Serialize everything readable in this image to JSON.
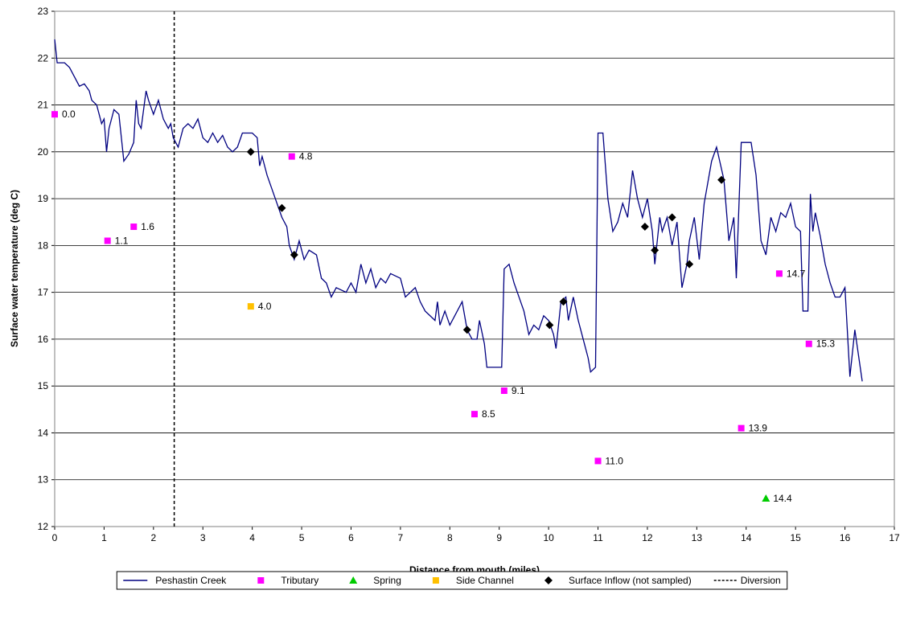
{
  "chart_data": {
    "type": "line",
    "xlabel": "Distance from mouth (miles)",
    "ylabel": "Surface water temperature (deg C)",
    "xlim": [
      0,
      17
    ],
    "xticks": [
      0,
      1,
      2,
      3,
      4,
      5,
      6,
      7,
      8,
      9,
      10,
      11,
      12,
      13,
      14,
      15,
      16,
      17
    ],
    "ylim": [
      12,
      23
    ],
    "yticks": [
      12,
      13,
      14,
      15,
      16,
      17,
      18,
      19,
      20,
      21,
      22,
      23
    ],
    "grid": true,
    "legend": "bottom",
    "series": [
      {
        "name": "Peshastin Creek",
        "color": "#000080",
        "marker": "line",
        "x": [
          0,
          0.05,
          0.2,
          0.3,
          0.4,
          0.5,
          0.6,
          0.7,
          0.75,
          0.85,
          0.9,
          0.95,
          1.0,
          1.05,
          1.1,
          1.2,
          1.3,
          1.35,
          1.4,
          1.5,
          1.6,
          1.65,
          1.7,
          1.75,
          1.8,
          1.85,
          1.9,
          2.0,
          2.1,
          2.2,
          2.3,
          2.35,
          2.4,
          2.45,
          2.5,
          2.6,
          2.7,
          2.8,
          2.9,
          3.0,
          3.1,
          3.2,
          3.3,
          3.4,
          3.5,
          3.6,
          3.7,
          3.8,
          4.0,
          4.1,
          4.15,
          4.2,
          4.3,
          4.4,
          4.5,
          4.6,
          4.7,
          4.75,
          4.85,
          4.95,
          5.05,
          5.15,
          5.3,
          5.4,
          5.5,
          5.6,
          5.7,
          5.9,
          6.0,
          6.1,
          6.2,
          6.3,
          6.4,
          6.5,
          6.6,
          6.7,
          6.8,
          7.0,
          7.1,
          7.2,
          7.3,
          7.4,
          7.5,
          7.6,
          7.7,
          7.75,
          7.8,
          7.9,
          8.0,
          8.1,
          8.25,
          8.35,
          8.45,
          8.55,
          8.6,
          8.7,
          8.75,
          8.9,
          9.05,
          9.1,
          9.2,
          9.3,
          9.4,
          9.5,
          9.6,
          9.7,
          9.8,
          9.9,
          10.0,
          10.1,
          10.15,
          10.25,
          10.35,
          10.4,
          10.5,
          10.6,
          10.7,
          10.8,
          10.85,
          10.95,
          11.0,
          11.1,
          11.2,
          11.3,
          11.4,
          11.5,
          11.6,
          11.7,
          11.8,
          11.9,
          12.0,
          12.1,
          12.15,
          12.25,
          12.3,
          12.4,
          12.5,
          12.6,
          12.7,
          12.8,
          12.85,
          12.95,
          13.05,
          13.15,
          13.3,
          13.4,
          13.55,
          13.65,
          13.75,
          13.8,
          13.9,
          14.1,
          14.2,
          14.3,
          14.4,
          14.5,
          14.6,
          14.7,
          14.8,
          14.9,
          15.0,
          15.1,
          15.15,
          15.25,
          15.3,
          15.35,
          15.4,
          15.5,
          15.6,
          15.7,
          15.8,
          15.9,
          16.0,
          16.1,
          16.2,
          16.35
        ],
        "values": [
          22.4,
          21.9,
          21.9,
          21.8,
          21.6,
          21.4,
          21.45,
          21.3,
          21.1,
          21.0,
          20.8,
          20.6,
          20.7,
          20.0,
          20.5,
          20.9,
          20.8,
          20.3,
          19.8,
          19.95,
          20.2,
          21.1,
          20.6,
          20.5,
          20.9,
          21.3,
          21.1,
          20.8,
          21.1,
          20.7,
          20.5,
          20.6,
          20.3,
          20.2,
          20.1,
          20.5,
          20.6,
          20.5,
          20.7,
          20.3,
          20.2,
          20.4,
          20.2,
          20.35,
          20.1,
          20.0,
          20.1,
          20.4,
          20.4,
          20.3,
          19.7,
          19.9,
          19.5,
          19.2,
          18.9,
          18.6,
          18.4,
          18.0,
          17.7,
          18.1,
          17.7,
          17.9,
          17.8,
          17.3,
          17.2,
          16.9,
          17.1,
          17.0,
          17.2,
          17.0,
          17.6,
          17.2,
          17.5,
          17.1,
          17.3,
          17.2,
          17.4,
          17.3,
          16.9,
          17.0,
          17.1,
          16.8,
          16.6,
          16.5,
          16.4,
          16.8,
          16.3,
          16.6,
          16.3,
          16.5,
          16.8,
          16.2,
          16.0,
          16.0,
          16.4,
          15.9,
          15.4,
          15.4,
          15.4,
          17.5,
          17.6,
          17.2,
          16.9,
          16.6,
          16.1,
          16.3,
          16.2,
          16.5,
          16.4,
          16.1,
          15.8,
          16.8,
          16.9,
          16.4,
          16.9,
          16.4,
          16.0,
          15.6,
          15.3,
          15.4,
          20.4,
          20.4,
          19.0,
          18.3,
          18.5,
          18.9,
          18.6,
          19.6,
          19.0,
          18.6,
          19.0,
          18.3,
          17.6,
          18.6,
          18.3,
          18.6,
          18.0,
          18.5,
          17.1,
          17.6,
          18.1,
          18.6,
          17.7,
          18.9,
          19.8,
          20.1,
          19.4,
          18.1,
          18.6,
          17.3,
          20.2,
          20.2,
          19.5,
          18.1,
          17.8,
          18.6,
          18.3,
          18.7,
          18.6,
          18.9,
          18.4,
          18.3,
          16.6,
          16.6,
          19.1,
          18.3,
          18.7,
          18.2,
          17.6,
          17.2,
          16.9,
          16.9,
          17.1,
          15.2,
          16.2,
          15.1
        ]
      },
      {
        "name": "Tributary",
        "color": "#ff00ff",
        "marker": "square",
        "x": [
          0,
          1.07,
          1.6,
          4.8,
          8.5,
          9.1,
          11.0,
          13.9,
          14.67,
          15.27
        ],
        "values": [
          20.8,
          18.1,
          18.4,
          19.9,
          14.4,
          14.9,
          13.4,
          14.1,
          17.4,
          15.9
        ],
        "x_labels": [
          "0.0",
          "1.1",
          "1.6",
          "4.8",
          "8.5",
          "9.1",
          "11.0",
          "13.9",
          "14.7",
          "15.3"
        ]
      },
      {
        "name": "Spring",
        "color": "#00cc00",
        "marker": "triangle",
        "x": [
          14.4
        ],
        "values": [
          12.6
        ],
        "x_labels": [
          "14.4"
        ]
      },
      {
        "name": "Side Channel",
        "color": "#ffc000",
        "marker": "square",
        "x": [
          3.97
        ],
        "values": [
          16.7
        ],
        "x_labels": [
          "4.0"
        ]
      },
      {
        "name": "Surface Inflow (not sampled)",
        "color": "#000000",
        "marker": "diamond",
        "x": [
          3.97,
          4.6,
          4.85,
          8.35,
          10.02,
          10.3,
          11.95,
          12.15,
          12.5,
          12.85,
          13.5
        ],
        "values": [
          20.0,
          18.8,
          17.8,
          16.2,
          16.3,
          16.8,
          18.4,
          17.9,
          18.6,
          17.6,
          19.4
        ]
      }
    ],
    "vlines": [
      {
        "name": "Diversion",
        "x": 2.42,
        "color": "#000000"
      }
    ]
  }
}
